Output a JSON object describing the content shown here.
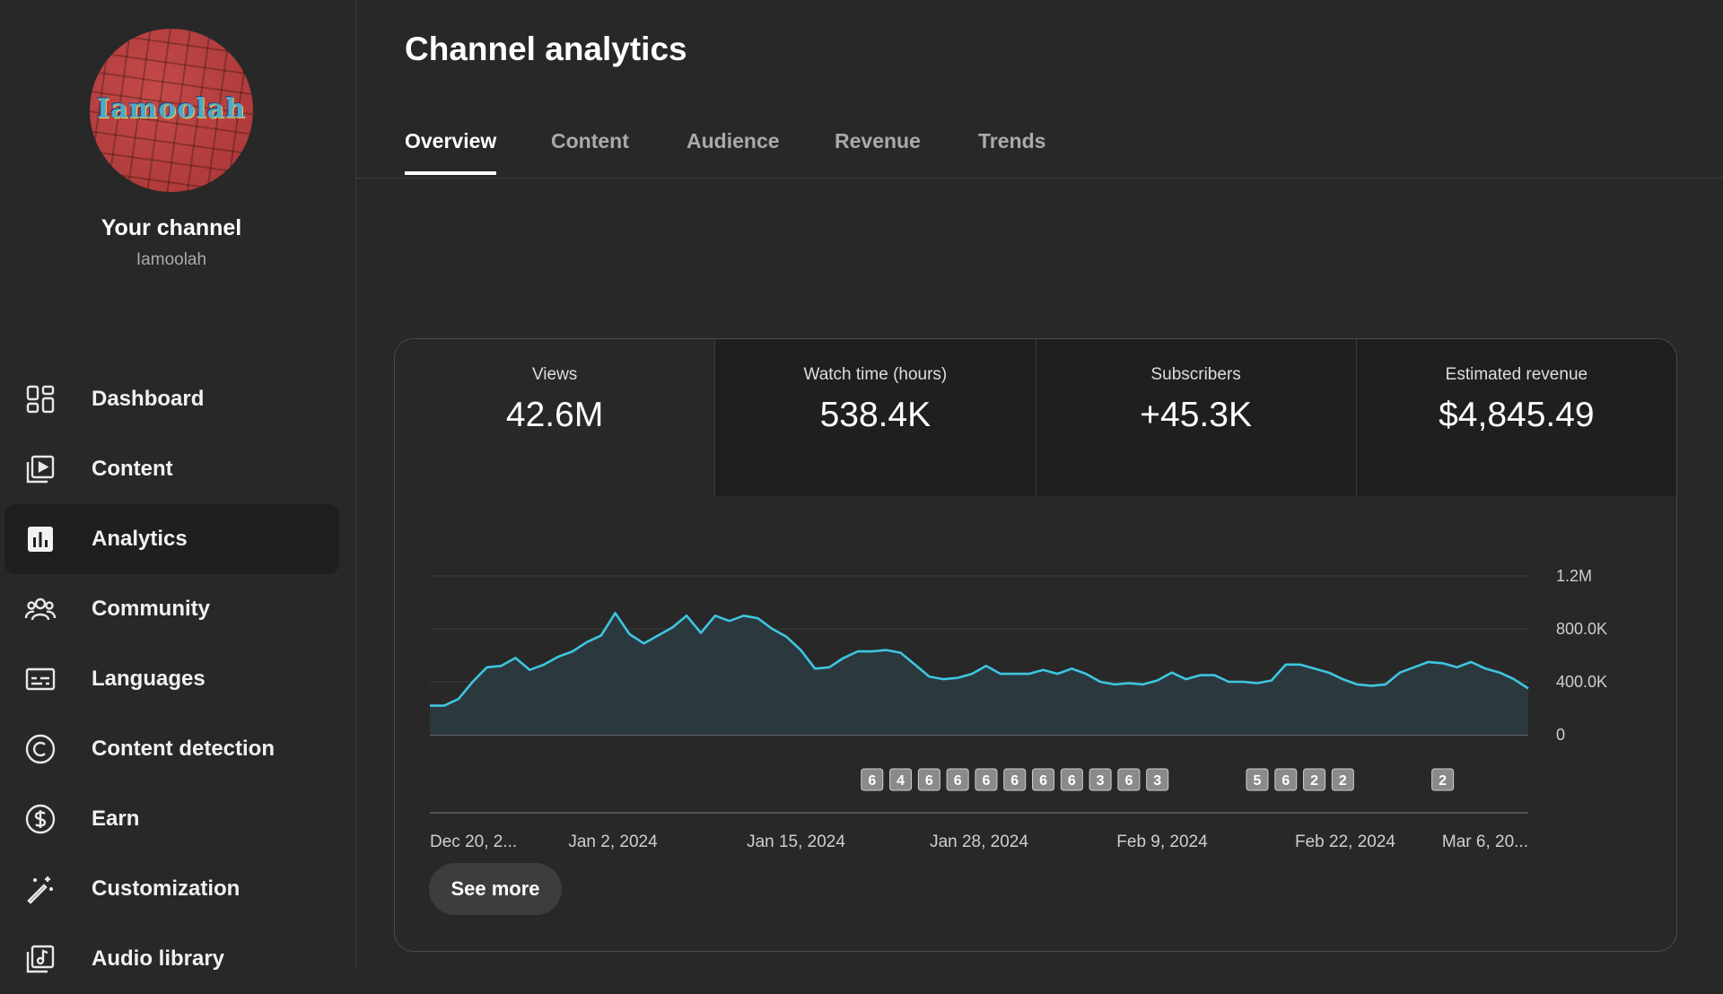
{
  "sidebar": {
    "avatar_text": "Iamoolah",
    "channel_title": "Your channel",
    "channel_handle": "Iamoolah",
    "items": [
      {
        "label": "Dashboard",
        "icon": "dashboard-icon",
        "active": false
      },
      {
        "label": "Content",
        "icon": "content-icon",
        "active": false
      },
      {
        "label": "Analytics",
        "icon": "analytics-icon",
        "active": true
      },
      {
        "label": "Community",
        "icon": "community-icon",
        "active": false
      },
      {
        "label": "Languages",
        "icon": "subtitles-icon",
        "active": false
      },
      {
        "label": "Content detection",
        "icon": "copyright-icon",
        "active": false
      },
      {
        "label": "Earn",
        "icon": "dollar-icon",
        "active": false
      },
      {
        "label": "Customization",
        "icon": "magic-wand-icon",
        "active": false
      },
      {
        "label": "Audio library",
        "icon": "audio-library-icon",
        "active": false
      }
    ]
  },
  "main": {
    "title": "Channel analytics",
    "tabs": [
      {
        "label": "Overview",
        "active": true
      },
      {
        "label": "Content",
        "active": false
      },
      {
        "label": "Audience",
        "active": false
      },
      {
        "label": "Revenue",
        "active": false
      },
      {
        "label": "Trends",
        "active": false
      }
    ],
    "metrics": [
      {
        "label": "Views",
        "value": "42.6M",
        "selected": true
      },
      {
        "label": "Watch time (hours)",
        "value": "538.4K",
        "selected": false
      },
      {
        "label": "Subscribers",
        "value": "+45.3K",
        "selected": false
      },
      {
        "label": "Estimated revenue",
        "value": "$4,845.49",
        "selected": false
      }
    ],
    "see_more_label": "See more"
  },
  "colors": {
    "background": "#282828",
    "metric_bg": "#1f1f1f",
    "line": "#3ec6e0",
    "area": "#2b3a40"
  },
  "chart_data": {
    "type": "area",
    "series": [
      {
        "values": [
          220000,
          220000,
          270000,
          400000,
          510000,
          520000,
          580000,
          490000,
          530000,
          590000,
          630000,
          700000,
          750000,
          920000,
          760000,
          690000,
          750000,
          810000,
          900000,
          770000,
          900000,
          860000,
          900000,
          880000,
          800000,
          740000,
          640000,
          500000,
          510000,
          580000,
          630000,
          630000,
          640000,
          620000,
          530000,
          440000,
          420000,
          430000,
          460000,
          520000,
          460000,
          460000,
          460000,
          490000,
          460000,
          500000,
          460000,
          400000,
          380000,
          390000,
          380000,
          410000,
          470000,
          420000,
          450000,
          450000,
          400000,
          400000,
          390000,
          410000,
          530000,
          530000,
          500000,
          470000,
          420000,
          380000,
          370000,
          380000,
          470000,
          510000,
          550000,
          540000,
          510000,
          550000,
          500000,
          470000,
          420000,
          350000
        ]
      }
    ],
    "x_tick_labels": [
      "Dec 20, 2...",
      "Jan 2, 2024",
      "Jan 15, 2024",
      "Jan 28, 2024",
      "Feb 9, 2024",
      "Feb 22, 2024",
      "Mar 6, 20..."
    ],
    "y_tick_labels": [
      "0",
      "400.0K",
      "800.0K",
      "1.2M"
    ],
    "y_ticks": [
      0,
      400000,
      800000,
      1200000
    ],
    "ylim": [
      0,
      1200000
    ],
    "grid": true,
    "annotation_markers": {
      "indices": [
        31,
        33,
        35,
        37,
        39,
        41,
        43,
        45,
        47,
        49,
        51,
        58,
        60,
        62,
        64,
        71
      ],
      "labels": [
        "6",
        "4",
        "6",
        "6",
        "6",
        "6",
        "6",
        "6",
        "3",
        "6",
        "3",
        "5",
        "6",
        "2",
        "2",
        "2"
      ]
    }
  }
}
